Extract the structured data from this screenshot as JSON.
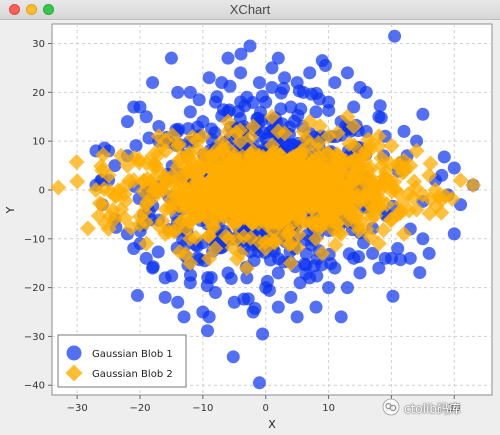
{
  "window": {
    "title": "XChart"
  },
  "watermark": {
    "text": "ctolib码库"
  },
  "chart_data": {
    "type": "scatter",
    "title": "",
    "xlabel": "X",
    "ylabel": "Y",
    "xlim": [
      -34,
      36
    ],
    "ylim": [
      -42,
      34
    ],
    "xticks": [
      -30,
      -20,
      -10,
      0,
      10,
      20,
      30
    ],
    "yticks": [
      -40,
      -30,
      -20,
      -10,
      0,
      10,
      20,
      30
    ],
    "grid": true,
    "legend_position": "bottom-left",
    "series": [
      {
        "name": "Gaussian Blob 1",
        "marker": "circle",
        "color": "#0a32f0",
        "points": [
          [
            20.5,
            31.5
          ],
          [
            -2.5,
            29.5
          ],
          [
            -14,
            20
          ],
          [
            -20,
            17
          ],
          [
            -21,
            17
          ],
          [
            -6,
            27
          ],
          [
            -19,
            15
          ],
          [
            -12,
            20
          ],
          [
            -18,
            22
          ],
          [
            9,
            26.5
          ],
          [
            9.5,
            25.5
          ],
          [
            13,
            24
          ],
          [
            15,
            21
          ],
          [
            16,
            20
          ],
          [
            3,
            23
          ],
          [
            1,
            21
          ],
          [
            5,
            22
          ],
          [
            -4,
            24
          ],
          [
            -7,
            22
          ],
          [
            -9,
            23
          ],
          [
            -1,
            22
          ],
          [
            2,
            27
          ],
          [
            7,
            24
          ],
          [
            11,
            22
          ],
          [
            -15,
            27
          ],
          [
            -22,
            14
          ],
          [
            -17,
            10
          ],
          [
            -25,
            8
          ],
          [
            -27,
            8
          ],
          [
            -22,
            7
          ],
          [
            -24,
            5
          ],
          [
            25,
            15.5
          ],
          [
            22,
            12
          ],
          [
            24,
            10
          ],
          [
            22.5,
            7
          ],
          [
            27,
            2
          ],
          [
            28,
            3
          ],
          [
            30,
            4.5
          ],
          [
            33,
            1
          ],
          [
            29,
            -1
          ],
          [
            31,
            -3
          ],
          [
            30,
            -9
          ],
          [
            26,
            -13
          ],
          [
            25,
            -10
          ],
          [
            23,
            -8
          ],
          [
            21,
            -12
          ],
          [
            20,
            -14
          ],
          [
            18,
            -16
          ],
          [
            17,
            -13
          ],
          [
            15,
            -17
          ],
          [
            13,
            -20
          ],
          [
            10,
            -20
          ],
          [
            7,
            -18
          ],
          [
            4,
            -22
          ],
          [
            2,
            -24
          ],
          [
            0,
            -20
          ],
          [
            -2,
            -25
          ],
          [
            -5,
            -23
          ],
          [
            -8,
            -21
          ],
          [
            -10,
            -25
          ],
          [
            -12,
            -19
          ],
          [
            -14,
            -23
          ],
          [
            -16,
            -18
          ],
          [
            -18,
            -16
          ],
          [
            -21,
            -12
          ],
          [
            -22,
            -9
          ],
          [
            -20,
            -11
          ],
          [
            -24,
            -6
          ],
          [
            -26,
            -3
          ],
          [
            -25,
            2
          ],
          [
            -27,
            1
          ],
          [
            -1,
            -39.5
          ],
          [
            -0.5,
            -29.5
          ],
          [
            -9,
            -26
          ],
          [
            -3,
            -18
          ],
          [
            5,
            -26
          ],
          [
            8,
            -24
          ],
          [
            12,
            -26
          ],
          [
            -13,
            -26
          ],
          [
            14,
            -14
          ],
          [
            11,
            -16
          ],
          [
            -6,
            -17
          ],
          [
            2,
            -17
          ],
          [
            -16,
            -22
          ],
          [
            19,
            -14
          ],
          [
            23,
            -14
          ],
          [
            -19,
            -14
          ],
          [
            -14,
            12
          ],
          [
            -10,
            14
          ],
          [
            -6,
            16
          ],
          [
            0,
            18
          ],
          [
            4,
            17
          ],
          [
            8,
            16
          ],
          [
            12,
            14
          ],
          [
            16,
            12
          ],
          [
            19,
            11
          ],
          [
            -3,
            19
          ],
          [
            6,
            20
          ],
          [
            10,
            18
          ],
          [
            -8,
            18
          ],
          [
            -12,
            16
          ],
          [
            14,
            17
          ],
          [
            18,
            15
          ],
          [
            -17,
            13
          ],
          [
            1,
            25
          ]
        ],
        "note_dense": false
      },
      {
        "name": "Gaussian Blob 2",
        "marker": "diamond",
        "color": "#ffad00",
        "points": [
          [
            -33,
            0.5
          ],
          [
            33,
            1
          ],
          [
            31,
            2
          ],
          [
            -26,
            -3
          ],
          [
            -25,
            3
          ],
          [
            -27,
            0
          ],
          [
            -23,
            -4
          ],
          [
            -22,
            5
          ],
          [
            -20,
            -7
          ],
          [
            -18,
            7
          ],
          [
            -16,
            -9
          ],
          [
            -14,
            9
          ],
          [
            -12,
            -10
          ],
          [
            -10,
            11
          ],
          [
            -8,
            -12
          ],
          [
            -6,
            12
          ],
          [
            -4,
            -13
          ],
          [
            -2,
            13
          ],
          [
            0,
            -12
          ],
          [
            2,
            12
          ],
          [
            4,
            -11
          ],
          [
            6,
            12
          ],
          [
            8,
            -10
          ],
          [
            10,
            11
          ],
          [
            12,
            -9
          ],
          [
            14,
            13
          ],
          [
            16,
            -8
          ],
          [
            18,
            9
          ],
          [
            20,
            -6
          ],
          [
            22,
            6
          ],
          [
            24,
            -4
          ],
          [
            26,
            3
          ],
          [
            25,
            -1
          ],
          [
            27,
            0
          ],
          [
            28,
            -2
          ],
          [
            -24,
            -6
          ],
          [
            -26,
            4
          ],
          [
            23,
            5
          ],
          [
            21,
            -5
          ],
          [
            -21,
            2
          ],
          [
            -19,
            -3
          ],
          [
            -17,
            4
          ],
          [
            -15,
            -2
          ],
          [
            -13,
            3
          ],
          [
            -11,
            -4
          ],
          [
            -9,
            5
          ],
          [
            -7,
            -1
          ],
          [
            -5,
            2
          ],
          [
            -3,
            -5
          ],
          [
            -1,
            4
          ],
          [
            1,
            -3
          ],
          [
            3,
            5
          ],
          [
            5,
            -2
          ],
          [
            7,
            3
          ],
          [
            9,
            -4
          ],
          [
            11,
            2
          ],
          [
            13,
            -3
          ],
          [
            15,
            4
          ],
          [
            17,
            -1
          ],
          [
            19,
            2
          ],
          [
            -12,
            -15
          ],
          [
            -9,
            -14
          ],
          [
            -3,
            -16
          ],
          [
            4,
            -15
          ],
          [
            9,
            -13
          ],
          [
            -6,
            14
          ],
          [
            1,
            15
          ],
          [
            7,
            14
          ],
          [
            13,
            15
          ],
          [
            -17,
            11
          ],
          [
            18,
            11
          ],
          [
            -23,
            7
          ],
          [
            24,
            8
          ],
          [
            -19,
            -11
          ],
          [
            18,
            -11
          ],
          [
            -25,
            -8
          ],
          [
            22,
            -9
          ]
        ]
      }
    ]
  }
}
